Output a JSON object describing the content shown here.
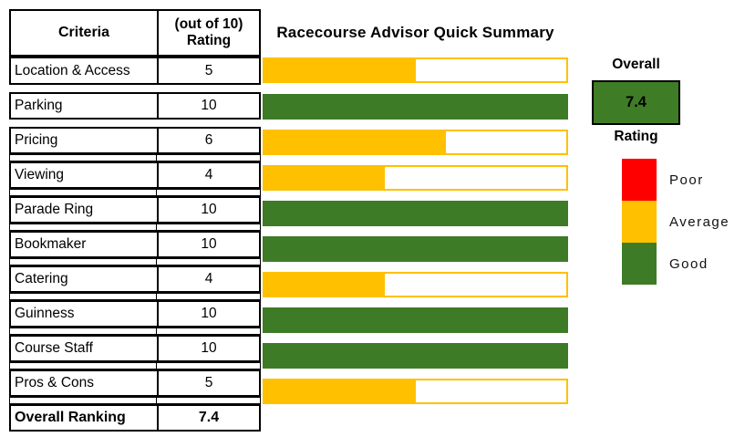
{
  "table": {
    "header": {
      "criteria": "Criteria",
      "rating_line1": "(out of 10)",
      "rating_line2": "Rating"
    },
    "rows": [
      {
        "label": "Location & Access",
        "rating": "5",
        "value": 5,
        "color": "#FFC000",
        "gap_before": "none"
      },
      {
        "label": "Parking",
        "rating": "10",
        "value": 10,
        "color": "#3E7B27",
        "gap_before": "plain"
      },
      {
        "label": "Pricing",
        "rating": "6",
        "value": 6,
        "color": "#FFC000",
        "gap_before": "plain"
      },
      {
        "label": "Viewing",
        "rating": "4",
        "value": 4,
        "color": "#FFC000",
        "gap_before": "bordered"
      },
      {
        "label": "Parade Ring",
        "rating": "10",
        "value": 10,
        "color": "#3E7B27",
        "gap_before": "bordered"
      },
      {
        "label": "Bookmaker",
        "rating": "10",
        "value": 10,
        "color": "#3E7B27",
        "gap_before": "bordered"
      },
      {
        "label": "Catering",
        "rating": "4",
        "value": 4,
        "color": "#FFC000",
        "gap_before": "bordered"
      },
      {
        "label": "Guinness",
        "rating": "10",
        "value": 10,
        "color": "#3E7B27",
        "gap_before": "bordered"
      },
      {
        "label": "Course Staff",
        "rating": "10",
        "value": 10,
        "color": "#3E7B27",
        "gap_before": "bordered"
      },
      {
        "label": "Pros & Cons",
        "rating": "5",
        "value": 5,
        "color": "#FFC000",
        "gap_before": "bordered"
      }
    ],
    "footer": {
      "label": "Overall Ranking",
      "value": "7.4"
    }
  },
  "chart": {
    "title": "Racecourse Advisor Quick Summary"
  },
  "overall": {
    "label": "Overall",
    "value": "7.4",
    "rating_label": "Rating"
  },
  "legend": {
    "items": [
      {
        "label": "Poor",
        "color": "#FF0000"
      },
      {
        "label": "Average",
        "color": "#FFC000"
      },
      {
        "label": "Good",
        "color": "#3E7B27"
      }
    ]
  },
  "colors": {
    "average": "#FFC000",
    "good": "#3E7B27",
    "poor": "#FF0000",
    "overall_box": "#3F7C26",
    "border": "#000000"
  },
  "chart_data": {
    "type": "bar",
    "orientation": "horizontal",
    "title": "Racecourse Advisor Quick Summary",
    "categories": [
      "Location & Access",
      "Parking",
      "Pricing",
      "Viewing",
      "Parade Ring",
      "Bookmaker",
      "Catering",
      "Guinness",
      "Course Staff",
      "Pros & Cons"
    ],
    "values": [
      5,
      10,
      6,
      4,
      10,
      10,
      4,
      10,
      10,
      5
    ],
    "bar_colors": [
      "#FFC000",
      "#3E7B27",
      "#FFC000",
      "#FFC000",
      "#3E7B27",
      "#3E7B27",
      "#FFC000",
      "#3E7B27",
      "#3E7B27",
      "#FFC000"
    ],
    "xlim": [
      0,
      10
    ],
    "grid": false,
    "legend": [
      {
        "label": "Poor",
        "color": "#FF0000"
      },
      {
        "label": "Average",
        "color": "#FFC000"
      },
      {
        "label": "Good",
        "color": "#3E7B27"
      }
    ],
    "overall_ranking": 7.4
  }
}
